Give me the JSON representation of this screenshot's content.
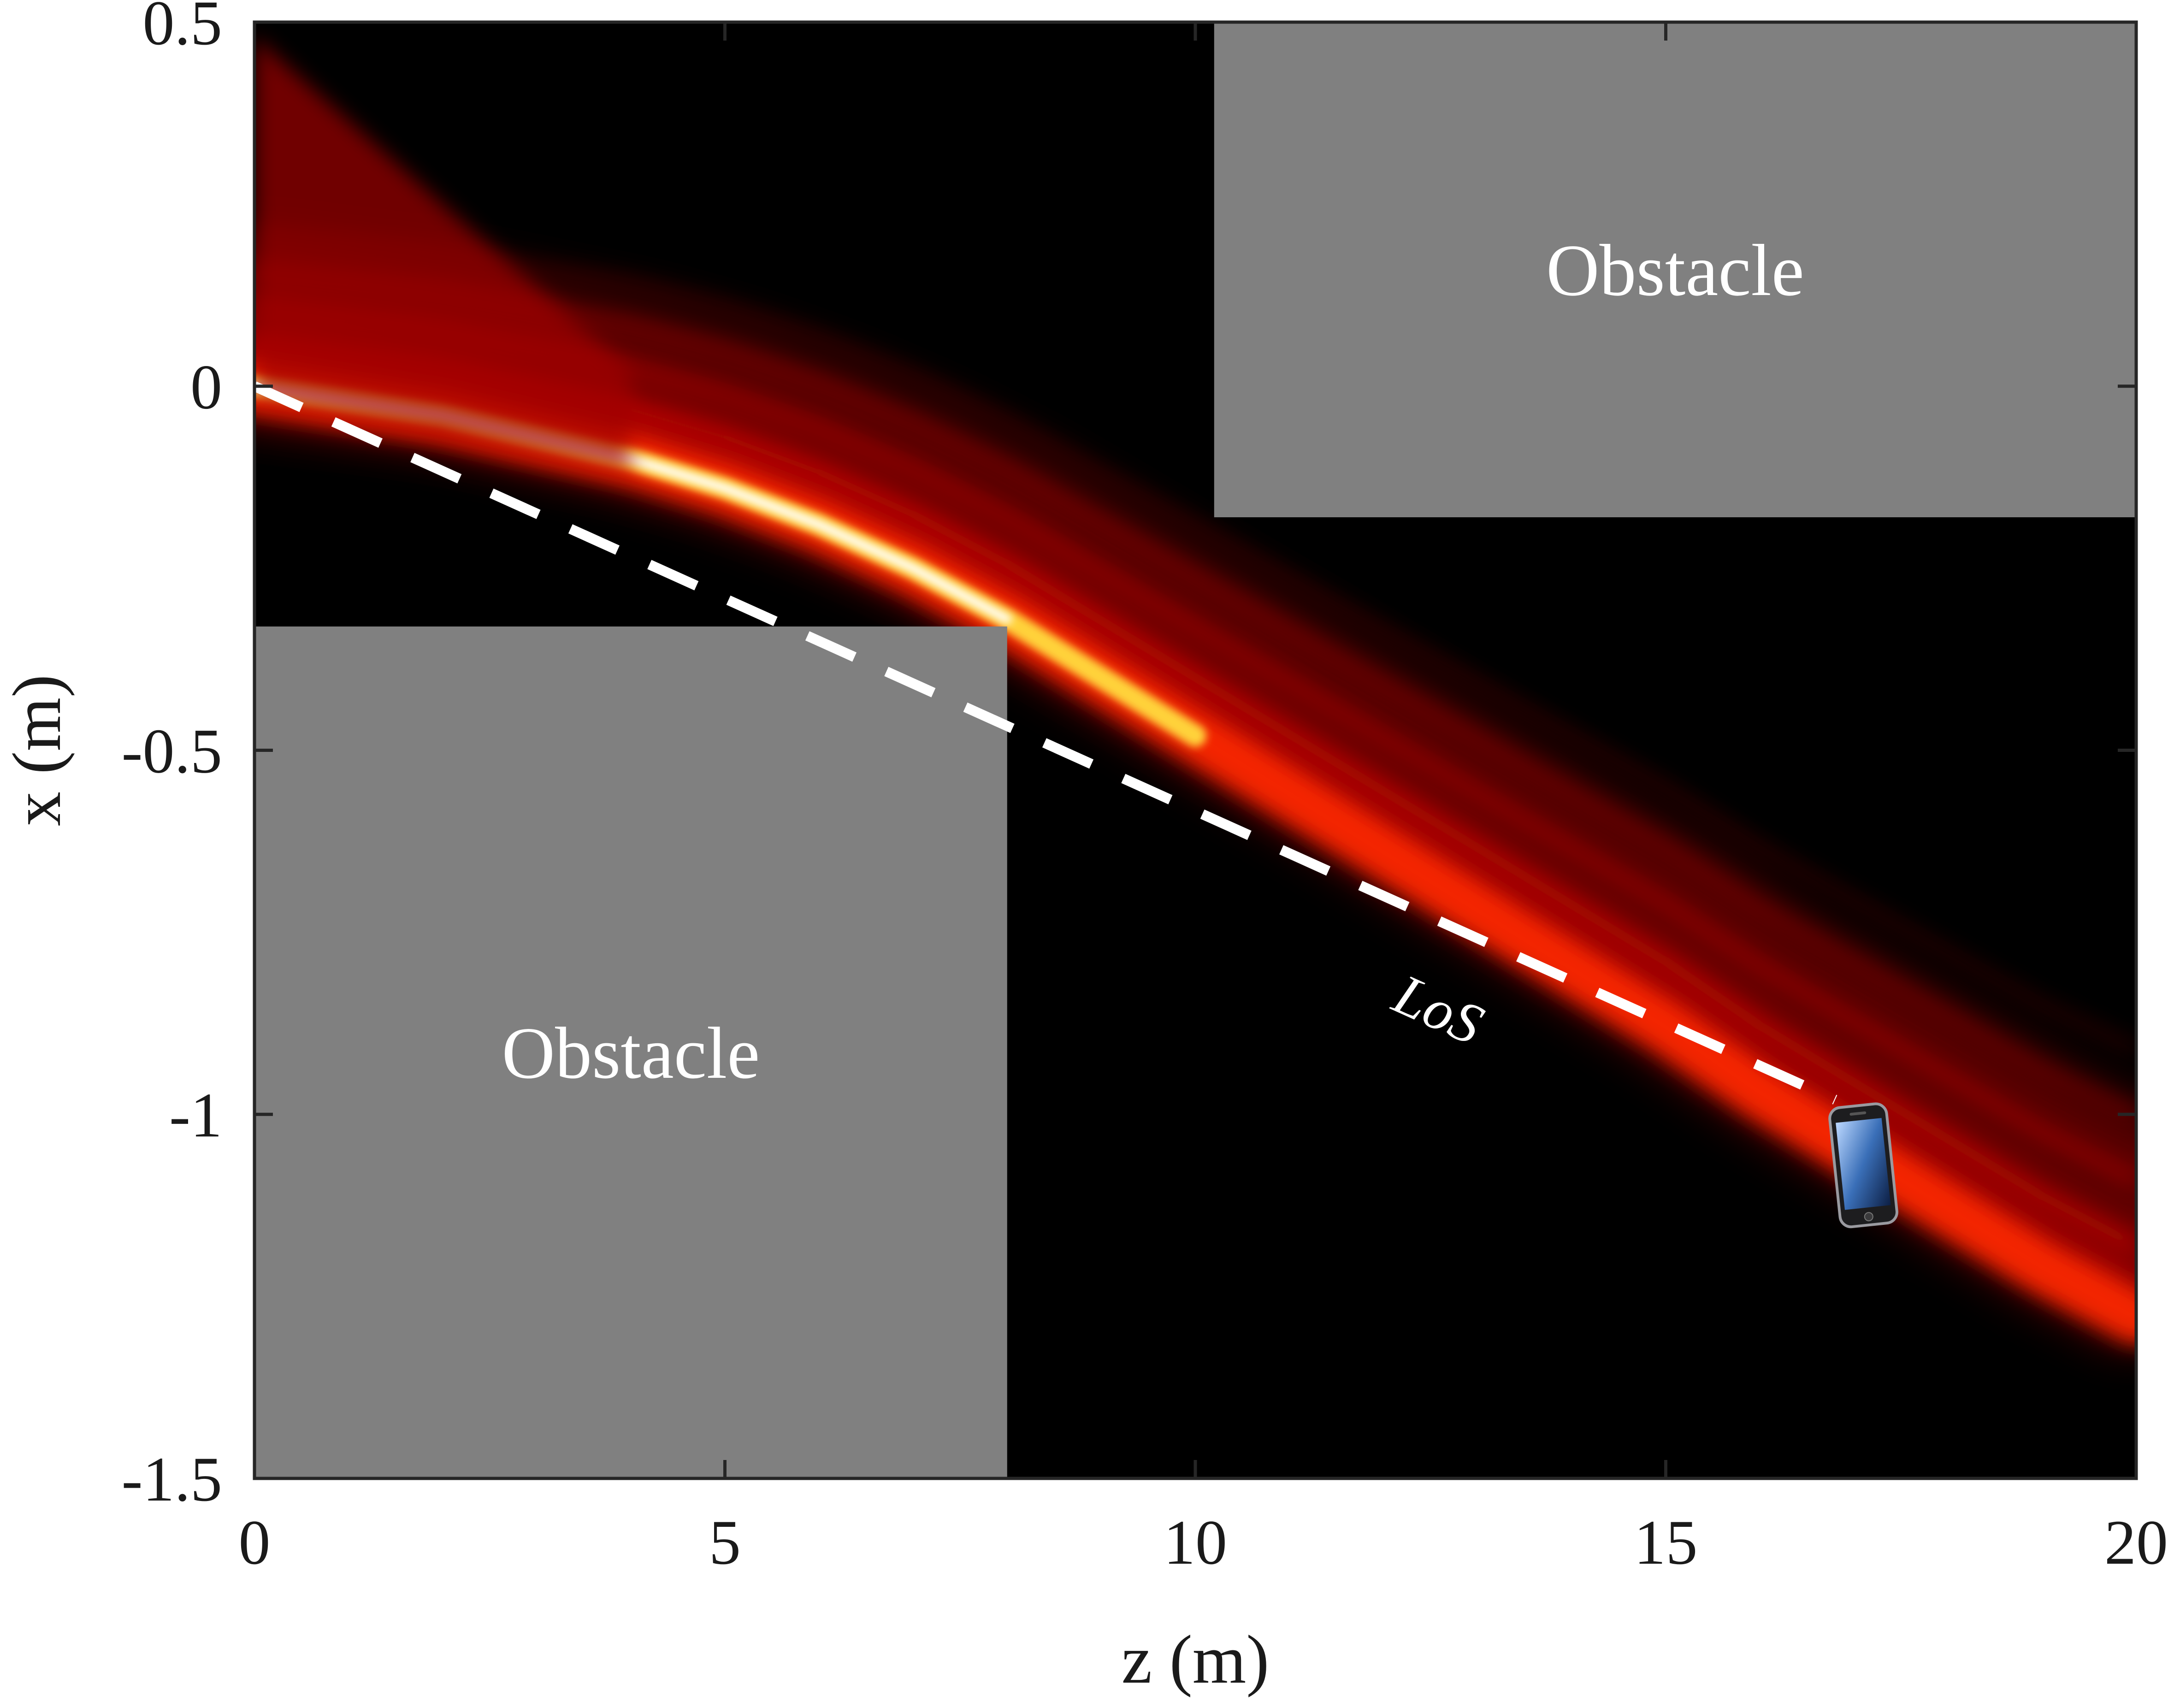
{
  "chart_data": {
    "type": "heatmap",
    "xlabel": "z (m)",
    "ylabel": "x (m)",
    "xlim": [
      0,
      20
    ],
    "ylim": [
      -1.5,
      0.5
    ],
    "xticks": [
      "0",
      "5",
      "10",
      "15",
      "20"
    ],
    "yticks": [
      "0.5",
      "0",
      "-0.5",
      "-1",
      "-1.5"
    ],
    "colormap": [
      "#000000",
      "#8b0000",
      "#ff2000",
      "#ffe040",
      "#ffffff"
    ],
    "beam_center": {
      "z": [
        0,
        1,
        2,
        3,
        4,
        5,
        6,
        7,
        8,
        9,
        10,
        11,
        12,
        13,
        14,
        15,
        16,
        17,
        18,
        19,
        20
      ],
      "x": [
        0.0,
        -0.02,
        -0.04,
        -0.07,
        -0.1,
        -0.14,
        -0.19,
        -0.25,
        -0.32,
        -0.4,
        -0.48,
        -0.56,
        -0.64,
        -0.72,
        -0.8,
        -0.88,
        -0.97,
        -1.05,
        -1.13,
        -1.21,
        -1.28
      ]
    },
    "los_line": {
      "z": [
        0,
        16.8
      ],
      "x": [
        0,
        -0.98
      ],
      "label": "LoS"
    },
    "obstacles": [
      {
        "label": "Obstacle",
        "z": [
          10.2,
          20
        ],
        "x": [
          -0.18,
          0.5
        ]
      },
      {
        "label": "Obstacle",
        "z": [
          0,
          8
        ],
        "x": [
          -1.5,
          -0.33
        ]
      }
    ],
    "user_device": {
      "icon": "smartphone-icon",
      "z": 17.1,
      "x": -1.07
    },
    "colors": {
      "obstacle": "#808080",
      "background": "#000000",
      "los": "#ffffff"
    }
  }
}
